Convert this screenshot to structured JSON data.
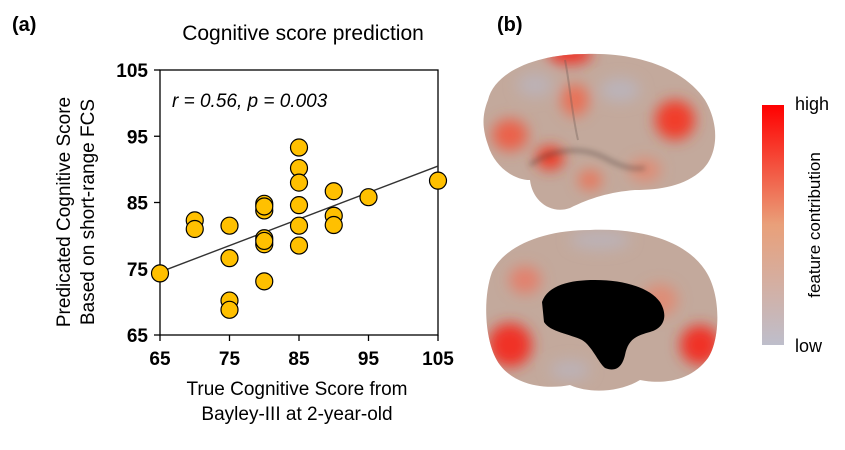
{
  "panels": {
    "a_label": "(a)",
    "b_label": "(b)"
  },
  "chart_data": {
    "type": "scatter",
    "title": "Cognitive score prediction",
    "xlabel": [
      "True Cognitive Score from",
      "Bayley-III at 2-year-old"
    ],
    "ylabel": [
      "Predicated Cognitive Score",
      "Based on short-range FCS"
    ],
    "xlim": [
      65,
      105
    ],
    "ylim": [
      65,
      105
    ],
    "xticks": [
      65,
      75,
      85,
      95,
      105
    ],
    "yticks": [
      65,
      75,
      85,
      95,
      105
    ],
    "annotation": "r = 0.56,  p = 0.003",
    "grid": false,
    "marker_color": "#FFC000",
    "marker_edge": "#000000",
    "trendline": {
      "x": [
        65,
        105
      ],
      "y": [
        74.5,
        90.5
      ]
    },
    "points": [
      {
        "x": 65,
        "y": 74.3
      },
      {
        "x": 70,
        "y": 82.3
      },
      {
        "x": 70,
        "y": 81.0
      },
      {
        "x": 75,
        "y": 81.5
      },
      {
        "x": 75,
        "y": 76.6
      },
      {
        "x": 75,
        "y": 70.2
      },
      {
        "x": 75,
        "y": 68.8
      },
      {
        "x": 80,
        "y": 84.8
      },
      {
        "x": 80,
        "y": 83.8
      },
      {
        "x": 80,
        "y": 84.4
      },
      {
        "x": 80,
        "y": 79.6
      },
      {
        "x": 80,
        "y": 78.7
      },
      {
        "x": 80,
        "y": 79.2
      },
      {
        "x": 80,
        "y": 73.1
      },
      {
        "x": 85,
        "y": 93.3
      },
      {
        "x": 85,
        "y": 90.2
      },
      {
        "x": 85,
        "y": 88.0
      },
      {
        "x": 85,
        "y": 84.6
      },
      {
        "x": 85,
        "y": 81.5
      },
      {
        "x": 85,
        "y": 78.5
      },
      {
        "x": 90,
        "y": 86.7
      },
      {
        "x": 90,
        "y": 83.0
      },
      {
        "x": 90,
        "y": 81.6
      },
      {
        "x": 95,
        "y": 85.8
      },
      {
        "x": 105,
        "y": 88.3
      }
    ]
  },
  "colorbar": {
    "high_label": "high",
    "low_label": "low",
    "title": "feature contribution",
    "color_high": "#FF0000",
    "color_mid": "#E9A07A",
    "color_low": "#BEBECB"
  },
  "brain": {
    "base_color": "#C7A596",
    "hot_color": "#F23A2A",
    "wall_color": "#000000"
  }
}
